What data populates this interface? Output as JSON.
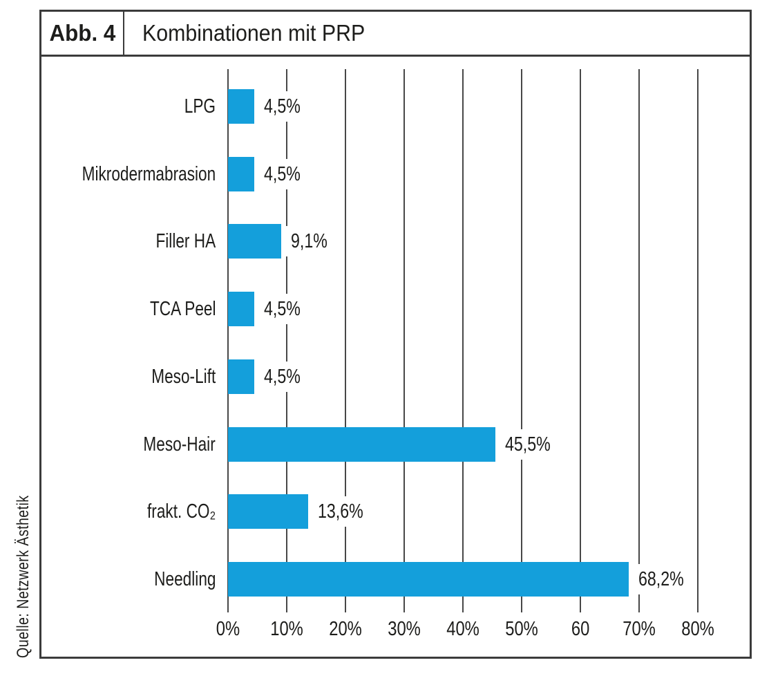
{
  "figure": {
    "label": "Abb. 4",
    "title": "Kombinationen mit PRP",
    "source": "Quelle: Netzwerk Ästhetik"
  },
  "colors": {
    "bar": "#149fdb",
    "gridline": "#474747",
    "frame": "#3b3b3b",
    "text": "#1d1d1b"
  },
  "chart_data": {
    "type": "bar",
    "orientation": "horizontal",
    "title": "Kombinationen mit PRP",
    "categories": [
      "LPG",
      "Mikrodermabrasion",
      "Filler HA",
      "TCA Peel",
      "Meso-Lift",
      "Meso-Hair",
      "frakt. CO₂",
      "Needling"
    ],
    "values": [
      4.5,
      4.5,
      9.1,
      4.5,
      4.5,
      45.5,
      13.6,
      68.2
    ],
    "value_labels": [
      "4,5%",
      "4,5%",
      "9,1%",
      "4,5%",
      "4,5%",
      "45,5%",
      "13,6%",
      "68,2%"
    ],
    "x_ticks": [
      "0%",
      "10%",
      "20%",
      "30%",
      "40%",
      "50%",
      "60",
      "70%",
      "80%"
    ],
    "x_tick_values": [
      0,
      10,
      20,
      30,
      40,
      50,
      60,
      70,
      80
    ],
    "xlim": [
      0,
      80
    ],
    "xlabel": "",
    "ylabel": "",
    "grid": "vertical",
    "legend": "none",
    "unit": "%",
    "decimal_separator": ","
  }
}
